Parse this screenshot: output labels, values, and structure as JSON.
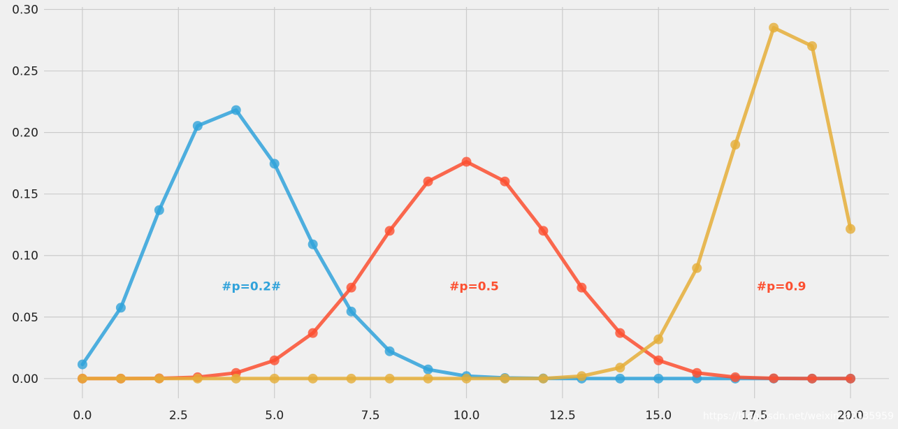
{
  "chart_data": {
    "type": "line",
    "x": [
      0,
      1,
      2,
      3,
      4,
      5,
      6,
      7,
      8,
      9,
      10,
      11,
      12,
      13,
      14,
      15,
      16,
      17,
      18,
      19,
      20
    ],
    "series": [
      {
        "color": "#30a2da",
        "values": [
          0.0115,
          0.0576,
          0.1369,
          0.2054,
          0.2182,
          0.1746,
          0.1091,
          0.0545,
          0.0222,
          0.0074,
          0.002,
          0.0005,
          0.0001,
          0,
          0,
          0,
          0,
          0,
          0,
          0,
          0
        ]
      },
      {
        "color": "#fc4f30",
        "values": [
          0,
          0,
          0.0002,
          0.0011,
          0.0046,
          0.0148,
          0.037,
          0.0739,
          0.1201,
          0.1602,
          0.1762,
          0.1602,
          0.1201,
          0.0739,
          0.037,
          0.0148,
          0.0046,
          0.0011,
          0.0002,
          0,
          0
        ]
      },
      {
        "color": "#e5ae38",
        "values": [
          0,
          0,
          0,
          0,
          0,
          0,
          0,
          0,
          0,
          0,
          0,
          0,
          0,
          0.002,
          0.0089,
          0.0319,
          0.0898,
          0.1901,
          0.2852,
          0.2702,
          0.1216
        ]
      }
    ],
    "annotations": [
      {
        "text": "#p=0.2#",
        "x": 4.4,
        "y": 0.075,
        "color": "#30a2da"
      },
      {
        "text": "#p=0.5",
        "x": 10.2,
        "y": 0.075,
        "color": "#fc4f30"
      },
      {
        "text": "#p=0.9",
        "x": 18.2,
        "y": 0.075,
        "color": "#fc4f30"
      }
    ],
    "xlim": [
      -1,
      21
    ],
    "ylim": [
      -0.016,
      0.302
    ],
    "xticks": [
      0,
      2.5,
      5,
      7.5,
      10,
      12.5,
      15,
      17.5,
      20
    ],
    "xtick_labels": [
      "0.0",
      "2.5",
      "5.0",
      "7.5",
      "10.0",
      "12.5",
      "15.0",
      "17.5",
      "20.0"
    ],
    "yticks": [
      0,
      0.05,
      0.1,
      0.15,
      0.2,
      0.25,
      0.3
    ],
    "ytick_labels": [
      "0.00",
      "0.05",
      "0.10",
      "0.15",
      "0.20",
      "0.25",
      "0.30"
    ],
    "grid": true,
    "title": "",
    "xlabel": "",
    "ylabel": ""
  },
  "watermark": "https://blog.csdn.net/weixin_42335959"
}
